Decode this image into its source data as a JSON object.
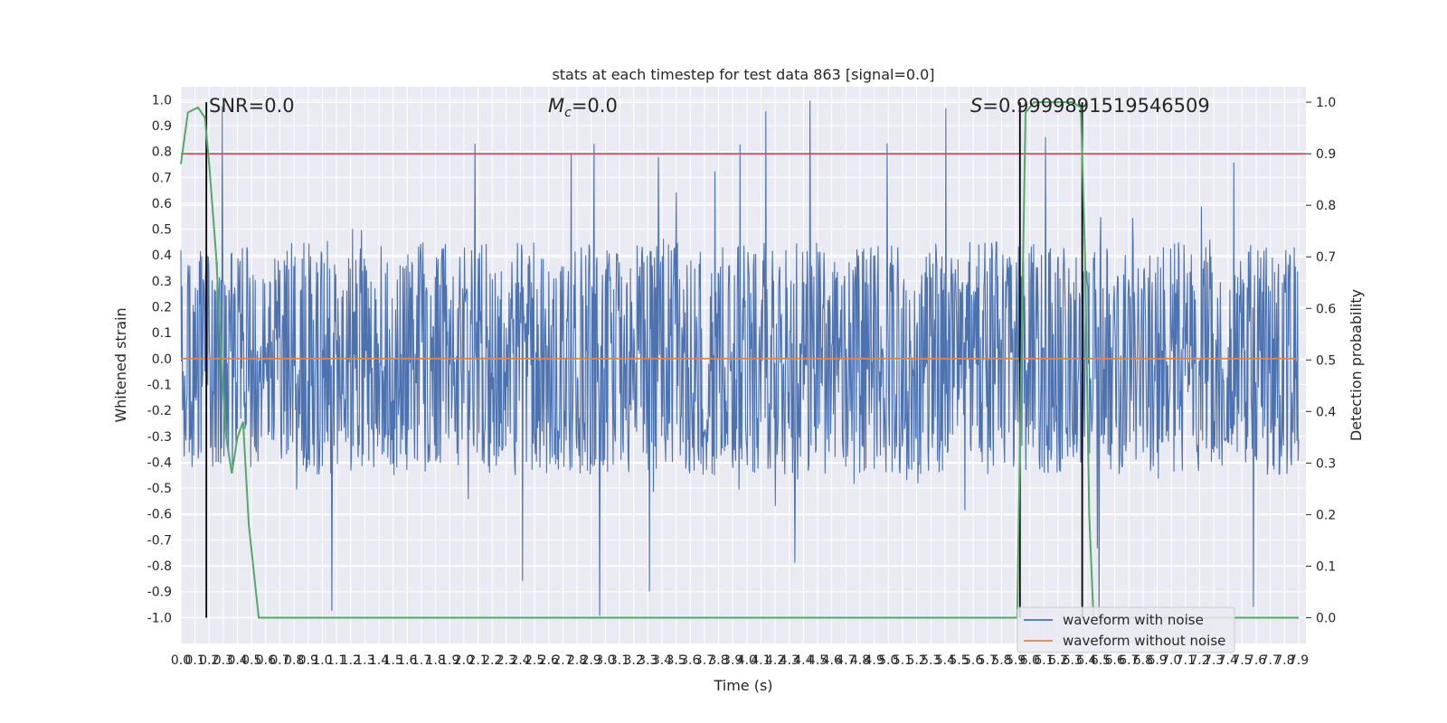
{
  "chart_data": {
    "type": "line",
    "title": "stats at each timestep for test data 863 [signal=0.0]",
    "xlabel": "Time (s)",
    "ylabel_left": "Whitened strain",
    "ylabel_right": "Detection probability",
    "xlim": [
      0.0,
      7.9
    ],
    "ylim_left": [
      -1.1,
      1.05
    ],
    "ylim_right": [
      -0.05,
      1.03
    ],
    "x_ticks": [
      "0.0",
      "0.1",
      "0.2",
      "0.3",
      "0.4",
      "0.5",
      "0.6",
      "0.7",
      "0.8",
      "0.9",
      "1.0",
      "1.1",
      "1.2",
      "1.3",
      "1.4",
      "1.5",
      "1.6",
      "1.7",
      "1.8",
      "1.9",
      "2.0",
      "2.1",
      "2.2",
      "2.3",
      "2.4",
      "2.5",
      "2.6",
      "2.7",
      "2.8",
      "2.9",
      "3.0",
      "3.1",
      "3.2",
      "3.3",
      "3.4",
      "3.5",
      "3.6",
      "3.7",
      "3.8",
      "3.9",
      "4.0",
      "4.1",
      "4.2",
      "4.3",
      "4.4",
      "4.5",
      "4.6",
      "4.7",
      "4.8",
      "4.9",
      "5.0",
      "5.1",
      "5.2",
      "5.3",
      "5.4",
      "5.5",
      "5.6",
      "5.7",
      "5.8",
      "5.9",
      "6.0",
      "6.1",
      "6.2",
      "6.3",
      "6.4",
      "6.5",
      "6.6",
      "6.7",
      "6.8",
      "6.9",
      "7.0",
      "7.1",
      "7.2",
      "7.3",
      "7.4",
      "7.5",
      "7.6",
      "7.7",
      "7.8",
      "7.9"
    ],
    "y_ticks_left": [
      "1.0",
      "0.9",
      "0.8",
      "0.7",
      "0.6",
      "0.5",
      "0.4",
      "0.3",
      "0.2",
      "0.1",
      "0.0",
      "-0.1",
      "-0.2",
      "-0.3",
      "-0.4",
      "-0.5",
      "-0.6",
      "-0.7",
      "-0.8",
      "-0.9",
      "-1.0"
    ],
    "y_ticks_right": [
      "1.0",
      "0.9",
      "0.8",
      "0.7",
      "0.6",
      "0.5",
      "0.4",
      "0.3",
      "0.2",
      "0.1",
      "0.0"
    ],
    "annotations": {
      "snr": "SNR=0.0",
      "mc_symbol": "M",
      "mc_sub": "c",
      "mc_value": "=0.0",
      "s_symbol": "S",
      "s_value": "=0.9999891519546509"
    },
    "threshold_right": 0.9,
    "vlines_x": [
      0.18,
      5.93,
      6.37
    ],
    "series": [
      {
        "name": "waveform with noise",
        "axis": "left",
        "color": "#4c72b0",
        "envelope": 0.45,
        "noise_std": 0.18,
        "samples": 2000
      },
      {
        "name": "waveform without noise",
        "axis": "left",
        "color": "#dd8452",
        "values": [
          0.0,
          0.0
        ]
      },
      {
        "axis": "right",
        "color": "#55a868",
        "x": [
          0.0,
          0.05,
          0.12,
          0.17,
          0.2,
          0.25,
          0.29,
          0.32,
          0.36,
          0.4,
          0.44,
          0.48,
          0.55,
          0.6,
          0.7,
          1.0,
          2.0,
          3.0,
          4.0,
          5.0,
          5.5,
          5.85,
          5.91,
          5.94,
          5.97,
          6.03,
          6.1,
          6.2,
          6.3,
          6.36,
          6.39,
          6.42,
          6.45,
          6.5,
          7.0,
          7.5,
          7.9
        ],
        "values": [
          0.88,
          0.98,
          0.99,
          0.97,
          0.88,
          0.7,
          0.48,
          0.35,
          0.28,
          0.35,
          0.38,
          0.18,
          0.0,
          0.0,
          0.0,
          0.0,
          0.0,
          0.0,
          0.0,
          0.0,
          0.0,
          0.0,
          0.0,
          0.5,
          0.98,
          1.0,
          1.0,
          1.0,
          1.0,
          0.99,
          0.7,
          0.2,
          0.0,
          0.0,
          0.0,
          0.0,
          0.0
        ]
      }
    ],
    "legend_position": "lower-right",
    "grid": true
  }
}
